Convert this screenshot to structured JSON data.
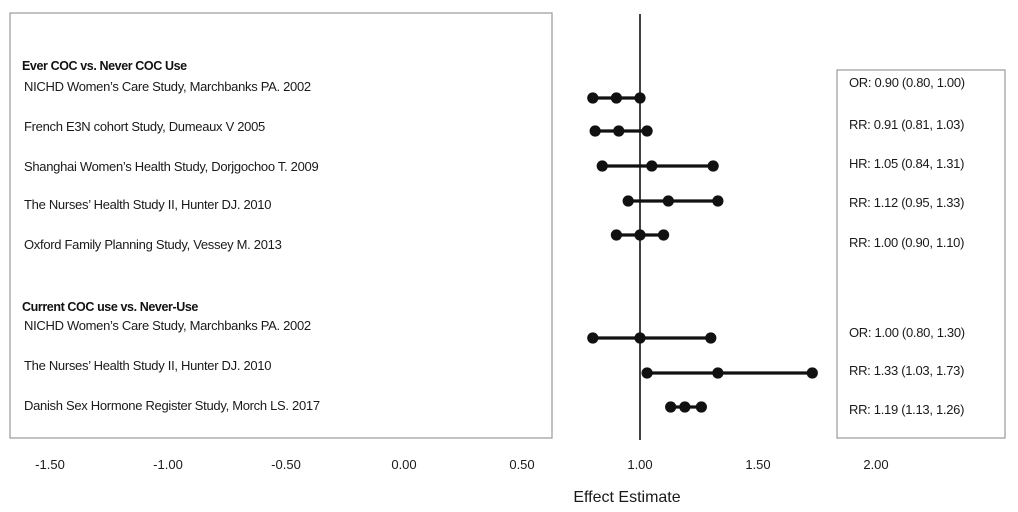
{
  "chart_data": {
    "type": "forest",
    "title": "",
    "xlabel": "Effect Estimate",
    "ylabel": "",
    "xlim": [
      -1.5,
      2.0
    ],
    "reference_line": 1.0,
    "xticks": [
      -1.5,
      -1.0,
      -0.5,
      0.0,
      0.5,
      1.0,
      1.5,
      2.0
    ],
    "xtick_labels": [
      "-1.50",
      "-1.00",
      "-0.50",
      "0.00",
      "0.50",
      "1.00",
      "1.50",
      "2.00"
    ],
    "groups": [
      {
        "header": "Ever COC vs. Never COC Use",
        "studies": [
          {
            "label": "NICHD Women’s Care Study, Marchbanks PA. 2002",
            "estimate": 0.9,
            "lower": 0.8,
            "upper": 1.0,
            "text": "OR: 0.90 (0.80, 1.00)"
          },
          {
            "label": "French E3N cohort Study, Dumeaux V 2005",
            "estimate": 0.91,
            "lower": 0.81,
            "upper": 1.03,
            "text": "RR: 0.91 (0.81, 1.03)"
          },
          {
            "label": "Shanghai Women’s Health Study, Dorjgochoo T. 2009",
            "estimate": 1.05,
            "lower": 0.84,
            "upper": 1.31,
            "text": "HR: 1.05 (0.84, 1.31)"
          },
          {
            "label": "The Nurses’ Health Study II, Hunter DJ. 2010",
            "estimate": 1.12,
            "lower": 0.95,
            "upper": 1.33,
            "text": "RR: 1.12 (0.95, 1.33)"
          },
          {
            "label": "Oxford Family Planning Study, Vessey M. 2013",
            "estimate": 1.0,
            "lower": 0.9,
            "upper": 1.1,
            "text": "RR: 1.00 (0.90, 1.10)"
          }
        ]
      },
      {
        "header": "Current COC use vs. Never-Use",
        "studies": [
          {
            "label": "NICHD Women’s Care Study, Marchbanks PA. 2002",
            "estimate": 1.0,
            "lower": 0.8,
            "upper": 1.3,
            "text": "OR: 1.00 (0.80, 1.30)"
          },
          {
            "label": "The Nurses’ Health Study II, Hunter DJ. 2010",
            "estimate": 1.33,
            "lower": 1.03,
            "upper": 1.73,
            "text": "RR: 1.33 (1.03, 1.73)"
          },
          {
            "label": "Danish Sex Hormone Register Study, Morch LS. 2017",
            "estimate": 1.19,
            "lower": 1.13,
            "upper": 1.26,
            "text": "RR: 1.19 (1.13, 1.26)"
          }
        ]
      }
    ]
  }
}
